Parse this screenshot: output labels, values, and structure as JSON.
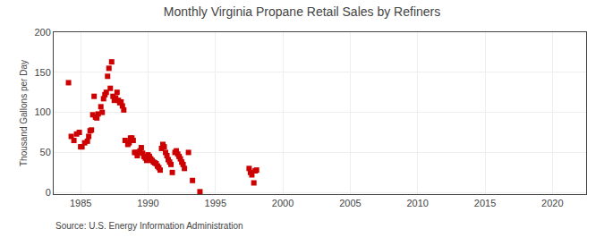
{
  "chart_data": {
    "type": "scatter",
    "title": "Monthly Virginia Propane Retail Sales by Refiners",
    "ylabel": "Thousand Gallons per Day",
    "annotations": [
      "Source: U.S. Energy Information Administration"
    ],
    "color": "#cc0000",
    "marker": "square",
    "grid": true,
    "xlim": [
      1983.0,
      2022.5
    ],
    "ylim": [
      -2,
      200
    ],
    "xticks": [
      1985,
      1990,
      1995,
      2000,
      2005,
      2010,
      2015,
      2020
    ],
    "yticks": [
      0,
      50,
      100,
      150,
      200
    ],
    "x": [
      1984.1,
      1984.3,
      1984.5,
      1984.7,
      1984.9,
      1985.0,
      1985.1,
      1985.3,
      1985.5,
      1985.6,
      1985.7,
      1985.8,
      1985.9,
      1986.0,
      1986.1,
      1986.2,
      1986.3,
      1986.5,
      1986.6,
      1986.7,
      1986.8,
      1986.9,
      1987.0,
      1987.1,
      1987.2,
      1987.3,
      1987.4,
      1987.5,
      1987.6,
      1987.7,
      1987.8,
      1987.9,
      1988.0,
      1988.1,
      1988.2,
      1988.3,
      1988.5,
      1988.6,
      1988.7,
      1988.8,
      1988.9,
      1989.0,
      1989.1,
      1989.2,
      1989.3,
      1989.4,
      1989.5,
      1989.6,
      1989.7,
      1989.8,
      1989.9,
      1990.0,
      1990.1,
      1990.2,
      1990.3,
      1990.4,
      1990.5,
      1990.6,
      1990.7,
      1990.8,
      1990.9,
      1991.0,
      1991.1,
      1991.2,
      1991.3,
      1991.4,
      1991.5,
      1991.6,
      1991.7,
      1991.8,
      1992.0,
      1992.1,
      1992.2,
      1992.3,
      1992.4,
      1992.5,
      1992.6,
      1992.7,
      1993.0,
      1993.3,
      1993.85,
      1997.5,
      1997.6,
      1997.7,
      1997.85,
      1997.95,
      1998.05
    ],
    "values": [
      137,
      70,
      65,
      73,
      75,
      57,
      57,
      62,
      64,
      70,
      77,
      78,
      97,
      120,
      94,
      93,
      98,
      107,
      100,
      117,
      122,
      125,
      145,
      155,
      130,
      163,
      120,
      115,
      118,
      125,
      115,
      112,
      113,
      108,
      103,
      65,
      60,
      62,
      68,
      68,
      65,
      50,
      50,
      46,
      50,
      52,
      56,
      49,
      45,
      43,
      40,
      47,
      45,
      42,
      40,
      38,
      37,
      36,
      33,
      31,
      28,
      55,
      60,
      57,
      50,
      46,
      41,
      38,
      35,
      25,
      50,
      52,
      48,
      45,
      42,
      38,
      35,
      30,
      50,
      15,
      1,
      30,
      25,
      22,
      12,
      27,
      28
    ]
  }
}
